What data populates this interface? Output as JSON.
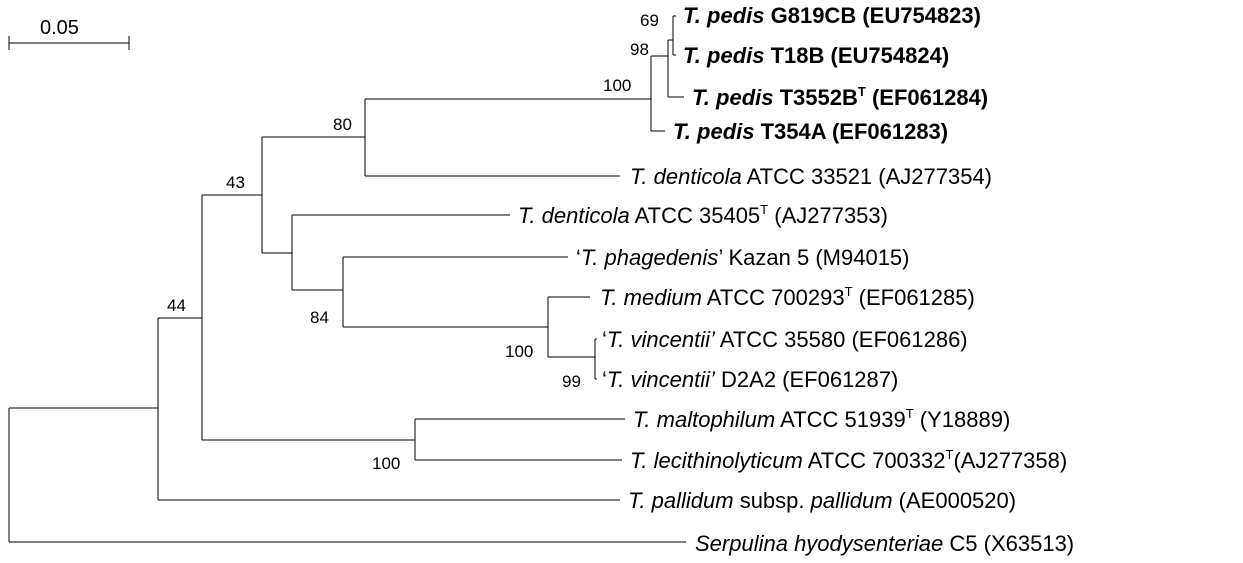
{
  "scale_bar": {
    "label": "0.05"
  },
  "bootstrap": {
    "b69": "69",
    "b98": "98",
    "b100_pedis": "100",
    "b80": "80",
    "b43": "43",
    "b44": "44",
    "b84": "84",
    "b100_medium": "100",
    "b99": "99",
    "b100_malto": "100"
  },
  "taxa": [
    {
      "id": "g819cb",
      "bold": true,
      "segments": [
        {
          "t": "T. pedis",
          "i": true
        },
        {
          "t": " G819CB (EU754823)"
        }
      ]
    },
    {
      "id": "t18b",
      "bold": true,
      "segments": [
        {
          "t": "T. pedis",
          "i": true
        },
        {
          "t": " T18B (EU754824)"
        }
      ]
    },
    {
      "id": "t3552b",
      "bold": true,
      "segments": [
        {
          "t": "T. pedis",
          "i": true
        },
        {
          "t": " T3552B"
        },
        {
          "t": "T",
          "sup": true
        },
        {
          "t": " (EF061284)"
        }
      ]
    },
    {
      "id": "t354a",
      "bold": true,
      "segments": [
        {
          "t": "T. pedis",
          "i": true
        },
        {
          "t": " T354A (EF061283)"
        }
      ]
    },
    {
      "id": "denticola-33521",
      "bold": false,
      "segments": [
        {
          "t": "T. denticola",
          "i": true
        },
        {
          "t": " ATCC 33521 (AJ277354)"
        }
      ]
    },
    {
      "id": "denticola-35405",
      "bold": false,
      "segments": [
        {
          "t": "T. denticola",
          "i": true
        },
        {
          "t": " ATCC 35405"
        },
        {
          "t": "T",
          "sup": true
        },
        {
          "t": " (AJ277353)"
        }
      ]
    },
    {
      "id": "phagedenis",
      "bold": false,
      "segments": [
        {
          "t": "‘"
        },
        {
          "t": "T. phagedenis",
          "i": true
        },
        {
          "t": "’ Kazan 5 (M94015)"
        }
      ]
    },
    {
      "id": "medium",
      "bold": false,
      "segments": [
        {
          "t": "T. medium",
          "i": true
        },
        {
          "t": " ATCC 700293"
        },
        {
          "t": "T",
          "sup": true
        },
        {
          "t": " (EF061285)"
        }
      ]
    },
    {
      "id": "vincentii-35580",
      "bold": false,
      "segments": [
        {
          "t": "‘"
        },
        {
          "t": "T. vincentii’",
          "i": true
        },
        {
          "t": " ATCC 35580 (EF061286)"
        }
      ]
    },
    {
      "id": "vincentii-d2a2",
      "bold": false,
      "segments": [
        {
          "t": "‘"
        },
        {
          "t": "T. vincentii’",
          "i": true
        },
        {
          "t": " D2A2 (EF061287)"
        }
      ]
    },
    {
      "id": "maltophilum",
      "bold": false,
      "segments": [
        {
          "t": "T. maltophilum",
          "i": true
        },
        {
          "t": " ATCC 51939"
        },
        {
          "t": "T",
          "sup": true
        },
        {
          "t": " (Y18889)"
        }
      ]
    },
    {
      "id": "lecithinolyticum",
      "bold": false,
      "segments": [
        {
          "t": "T. lecithinolyticum",
          "i": true
        },
        {
          "t": " ATCC 700332"
        },
        {
          "t": "T",
          "sup": true
        },
        {
          "t": "(AJ277358)"
        }
      ]
    },
    {
      "id": "pallidum",
      "bold": false,
      "segments": [
        {
          "t": "T. pallidum",
          "i": true
        },
        {
          "t": " subsp. "
        },
        {
          "t": "pallidum",
          "i": true
        },
        {
          "t": " (AE000520)"
        }
      ]
    },
    {
      "id": "serpulina",
      "bold": false,
      "segments": [
        {
          "t": "Serpulina hyodysenteriae",
          "i": true
        },
        {
          "t": " C5 (X63513)"
        }
      ]
    }
  ]
}
